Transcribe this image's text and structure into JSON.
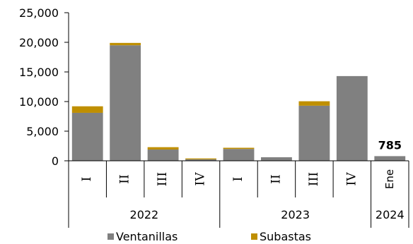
{
  "chart_data": {
    "type": "bar",
    "stacked": true,
    "categories": [
      "I",
      "II",
      "III",
      "IV",
      "I",
      "II",
      "III",
      "IV",
      "Ene"
    ],
    "groups": [
      {
        "label": "2022",
        "count": 4
      },
      {
        "label": "2023",
        "count": 4
      },
      {
        "label": "2024",
        "count": 1
      }
    ],
    "series": [
      {
        "name": "Ventanillas",
        "color": "#808080",
        "values": [
          8100,
          19500,
          1900,
          250,
          2000,
          600,
          9300,
          14300,
          785
        ]
      },
      {
        "name": "Subastas",
        "color": "#bf8f00",
        "values": [
          1100,
          400,
          400,
          150,
          200,
          0,
          750,
          0,
          0
        ]
      }
    ],
    "ylim": [
      0,
      25000
    ],
    "yticks": [
      0,
      5000,
      10000,
      15000,
      20000,
      25000
    ],
    "ytick_labels": [
      "0",
      "5,000",
      "10,000",
      "15,000",
      "20,000",
      "25,000"
    ],
    "annotations": [
      {
        "category_index": 8,
        "text": "785"
      }
    ],
    "legend_position": "bottom",
    "grid": false
  }
}
